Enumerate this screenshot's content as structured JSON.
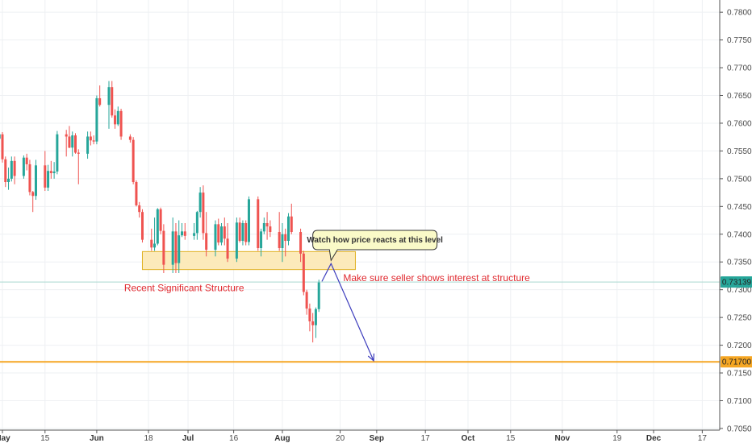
{
  "chart_data": {
    "type": "candlestick",
    "x_ticks": [
      {
        "label": "May",
        "kind": "month",
        "day": 0
      },
      {
        "label": "15",
        "kind": "day",
        "day": 14
      },
      {
        "label": "Jun",
        "kind": "month",
        "day": 31
      },
      {
        "label": "18",
        "kind": "day",
        "day": 48
      },
      {
        "label": "Jul",
        "kind": "month",
        "day": 61
      },
      {
        "label": "16",
        "kind": "day",
        "day": 76
      },
      {
        "label": "Aug",
        "kind": "month",
        "day": 92
      },
      {
        "label": "20",
        "kind": "day",
        "day": 111
      },
      {
        "label": "Sep",
        "kind": "month",
        "day": 123
      },
      {
        "label": "17",
        "kind": "day",
        "day": 139
      },
      {
        "label": "Oct",
        "kind": "month",
        "day": 153
      },
      {
        "label": "15",
        "kind": "day",
        "day": 167
      },
      {
        "label": "Nov",
        "kind": "month",
        "day": 184
      },
      {
        "label": "19",
        "kind": "day",
        "day": 202
      },
      {
        "label": "Dec",
        "kind": "month",
        "day": 214
      },
      {
        "label": "17",
        "kind": "day",
        "day": 230
      }
    ],
    "y_ticks": [
      "0.78000",
      "0.77500",
      "0.77000",
      "0.76500",
      "0.76000",
      "0.75500",
      "0.75000",
      "0.74500",
      "0.74000",
      "0.73500",
      "0.73000",
      "0.72500",
      "0.72000",
      "0.71500",
      "0.71000",
      "0.70500"
    ],
    "ylim": [
      0.7047,
      0.7822
    ],
    "xlim_days": [
      0,
      236
    ],
    "candles": [
      {
        "day": -1,
        "o": 0.7572,
        "h": 0.7585,
        "l": 0.7538,
        "c": 0.758
      },
      {
        "day": 0,
        "o": 0.758,
        "h": 0.7584,
        "l": 0.7529,
        "c": 0.7535
      },
      {
        "day": 1,
        "o": 0.7535,
        "h": 0.754,
        "l": 0.7485,
        "c": 0.7494
      },
      {
        "day": 2,
        "o": 0.7494,
        "h": 0.752,
        "l": 0.748,
        "c": 0.75
      },
      {
        "day": 3,
        "o": 0.75,
        "h": 0.754,
        "l": 0.7495,
        "c": 0.7532
      },
      {
        "day": 4,
        "o": 0.7532,
        "h": 0.754,
        "l": 0.749,
        "c": 0.7505
      },
      {
        "day": 7,
        "o": 0.7505,
        "h": 0.7542,
        "l": 0.75,
        "c": 0.7538
      },
      {
        "day": 8,
        "o": 0.7538,
        "h": 0.7545,
        "l": 0.7515,
        "c": 0.7526
      },
      {
        "day": 9,
        "o": 0.7526,
        "h": 0.7534,
        "l": 0.747,
        "c": 0.7476
      },
      {
        "day": 10,
        "o": 0.7476,
        "h": 0.7478,
        "l": 0.744,
        "c": 0.7469
      },
      {
        "day": 11,
        "o": 0.7469,
        "h": 0.7534,
        "l": 0.7462,
        "c": 0.7524
      },
      {
        "day": 14,
        "o": 0.7524,
        "h": 0.755,
        "l": 0.7478,
        "c": 0.7484
      },
      {
        "day": 15,
        "o": 0.7484,
        "h": 0.7525,
        "l": 0.7478,
        "c": 0.7514
      },
      {
        "day": 16,
        "o": 0.7514,
        "h": 0.7532,
        "l": 0.75,
        "c": 0.751
      },
      {
        "day": 17,
        "o": 0.751,
        "h": 0.753,
        "l": 0.75,
        "c": 0.7513
      },
      {
        "day": 18,
        "o": 0.7513,
        "h": 0.7586,
        "l": 0.7508,
        "c": 0.758
      },
      {
        "day": 21,
        "o": 0.758,
        "h": 0.7588,
        "l": 0.754,
        "c": 0.7576
      },
      {
        "day": 22,
        "o": 0.7576,
        "h": 0.7595,
        "l": 0.7555,
        "c": 0.7556
      },
      {
        "day": 23,
        "o": 0.7556,
        "h": 0.7585,
        "l": 0.754,
        "c": 0.7578
      },
      {
        "day": 24,
        "o": 0.7578,
        "h": 0.7582,
        "l": 0.7545,
        "c": 0.7547
      },
      {
        "day": 25,
        "o": 0.7547,
        "h": 0.7553,
        "l": 0.749,
        "c": 0.7545
      },
      {
        "day": 28,
        "o": 0.7545,
        "h": 0.7585,
        "l": 0.7536,
        "c": 0.7576
      },
      {
        "day": 29,
        "o": 0.7576,
        "h": 0.7585,
        "l": 0.756,
        "c": 0.7569
      },
      {
        "day": 30,
        "o": 0.7569,
        "h": 0.7578,
        "l": 0.7562,
        "c": 0.7567
      },
      {
        "day": 31,
        "o": 0.7567,
        "h": 0.765,
        "l": 0.7562,
        "c": 0.7645
      },
      {
        "day": 32,
        "o": 0.7645,
        "h": 0.7668,
        "l": 0.763,
        "c": 0.7633
      },
      {
        "day": 35,
        "o": 0.7633,
        "h": 0.7676,
        "l": 0.759,
        "c": 0.7665
      },
      {
        "day": 36,
        "o": 0.7665,
        "h": 0.7676,
        "l": 0.761,
        "c": 0.7614
      },
      {
        "day": 37,
        "o": 0.7614,
        "h": 0.7625,
        "l": 0.759,
        "c": 0.7598
      },
      {
        "day": 38,
        "o": 0.7598,
        "h": 0.763,
        "l": 0.7595,
        "c": 0.7622
      },
      {
        "day": 39,
        "o": 0.7622,
        "h": 0.7626,
        "l": 0.757,
        "c": 0.7576
      },
      {
        "day": 42,
        "o": 0.7576,
        "h": 0.758,
        "l": 0.7565,
        "c": 0.757
      },
      {
        "day": 43,
        "o": 0.757,
        "h": 0.7575,
        "l": 0.749,
        "c": 0.7494
      },
      {
        "day": 44,
        "o": 0.7494,
        "h": 0.7497,
        "l": 0.745,
        "c": 0.7452
      },
      {
        "day": 45,
        "o": 0.7452,
        "h": 0.7458,
        "l": 0.743,
        "c": 0.744
      },
      {
        "day": 46,
        "o": 0.744,
        "h": 0.7445,
        "l": 0.7385,
        "c": 0.739
      },
      {
        "day": 49,
        "o": 0.739,
        "h": 0.741,
        "l": 0.737,
        "c": 0.7376
      },
      {
        "day": 50,
        "o": 0.7376,
        "h": 0.743,
        "l": 0.737,
        "c": 0.7383
      },
      {
        "day": 51,
        "o": 0.7383,
        "h": 0.7447,
        "l": 0.738,
        "c": 0.7445
      },
      {
        "day": 52,
        "o": 0.7445,
        "h": 0.7448,
        "l": 0.74,
        "c": 0.7406
      },
      {
        "day": 53,
        "o": 0.7406,
        "h": 0.7418,
        "l": 0.733,
        "c": 0.7345
      },
      {
        "day": 56,
        "o": 0.7345,
        "h": 0.743,
        "l": 0.733,
        "c": 0.7405
      },
      {
        "day": 57,
        "o": 0.7405,
        "h": 0.742,
        "l": 0.733,
        "c": 0.7348
      },
      {
        "day": 58,
        "o": 0.7348,
        "h": 0.7425,
        "l": 0.733,
        "c": 0.7398
      },
      {
        "day": 59,
        "o": 0.7398,
        "h": 0.742,
        "l": 0.7395,
        "c": 0.7405
      },
      {
        "day": 60,
        "o": 0.7405,
        "h": 0.742,
        "l": 0.739,
        "c": 0.7397
      },
      {
        "day": 63,
        "o": 0.7397,
        "h": 0.742,
        "l": 0.739,
        "c": 0.7402
      },
      {
        "day": 64,
        "o": 0.7402,
        "h": 0.7442,
        "l": 0.739,
        "c": 0.744
      },
      {
        "day": 65,
        "o": 0.744,
        "h": 0.7485,
        "l": 0.743,
        "c": 0.7475
      },
      {
        "day": 66,
        "o": 0.7475,
        "h": 0.7488,
        "l": 0.739,
        "c": 0.7402
      },
      {
        "day": 67,
        "o": 0.7402,
        "h": 0.744,
        "l": 0.736,
        "c": 0.7372
      },
      {
        "day": 70,
        "o": 0.7372,
        "h": 0.7425,
        "l": 0.736,
        "c": 0.7418
      },
      {
        "day": 71,
        "o": 0.7418,
        "h": 0.7428,
        "l": 0.738,
        "c": 0.7385
      },
      {
        "day": 72,
        "o": 0.7385,
        "h": 0.742,
        "l": 0.738,
        "c": 0.7414
      },
      {
        "day": 73,
        "o": 0.7414,
        "h": 0.743,
        "l": 0.738,
        "c": 0.7392
      },
      {
        "day": 74,
        "o": 0.7392,
        "h": 0.742,
        "l": 0.735,
        "c": 0.7356
      },
      {
        "day": 77,
        "o": 0.7356,
        "h": 0.743,
        "l": 0.735,
        "c": 0.7421
      },
      {
        "day": 78,
        "o": 0.7421,
        "h": 0.743,
        "l": 0.7385,
        "c": 0.7388
      },
      {
        "day": 79,
        "o": 0.7388,
        "h": 0.7425,
        "l": 0.738,
        "c": 0.742
      },
      {
        "day": 80,
        "o": 0.742,
        "h": 0.7425,
        "l": 0.738,
        "c": 0.7386
      },
      {
        "day": 81,
        "o": 0.7386,
        "h": 0.7468,
        "l": 0.738,
        "c": 0.7463
      },
      {
        "day": 84,
        "o": 0.7463,
        "h": 0.7468,
        "l": 0.737,
        "c": 0.7375
      },
      {
        "day": 85,
        "o": 0.7375,
        "h": 0.741,
        "l": 0.736,
        "c": 0.7405
      },
      {
        "day": 86,
        "o": 0.7405,
        "h": 0.743,
        "l": 0.74,
        "c": 0.742
      },
      {
        "day": 87,
        "o": 0.742,
        "h": 0.744,
        "l": 0.739,
        "c": 0.7414
      },
      {
        "day": 88,
        "o": 0.7414,
        "h": 0.7425,
        "l": 0.7395,
        "c": 0.7404
      },
      {
        "day": 91,
        "o": 0.7404,
        "h": 0.744,
        "l": 0.737,
        "c": 0.7375
      },
      {
        "day": 92,
        "o": 0.7375,
        "h": 0.742,
        "l": 0.735,
        "c": 0.74
      },
      {
        "day": 93,
        "o": 0.74,
        "h": 0.741,
        "l": 0.736,
        "c": 0.7388
      },
      {
        "day": 94,
        "o": 0.7388,
        "h": 0.7438,
        "l": 0.738,
        "c": 0.7432
      },
      {
        "day": 95,
        "o": 0.7432,
        "h": 0.7455,
        "l": 0.74,
        "c": 0.7404
      },
      {
        "day": 98,
        "o": 0.7404,
        "h": 0.741,
        "l": 0.735,
        "c": 0.7365
      },
      {
        "day": 99,
        "o": 0.7365,
        "h": 0.737,
        "l": 0.729,
        "c": 0.7296
      },
      {
        "day": 100,
        "o": 0.7296,
        "h": 0.73,
        "l": 0.7255,
        "c": 0.7266
      },
      {
        "day": 101,
        "o": 0.7266,
        "h": 0.7275,
        "l": 0.7225,
        "c": 0.7243
      },
      {
        "day": 102,
        "o": 0.7243,
        "h": 0.7258,
        "l": 0.7205,
        "c": 0.7236
      },
      {
        "day": 103,
        "o": 0.7236,
        "h": 0.7268,
        "l": 0.7213,
        "c": 0.7265
      },
      {
        "day": 104,
        "o": 0.7265,
        "h": 0.7318,
        "l": 0.726,
        "c": 0.7313
      }
    ],
    "structure_zone": {
      "day_start": 46,
      "day_end": 116,
      "price_low": 0.7345,
      "price_high": 0.736,
      "label": "Recent Significant Structure"
    },
    "horizontal_lines": [
      {
        "price": 0.717,
        "label": "0.71700",
        "color": "#f5a623"
      },
      {
        "price": 0.73139,
        "label": "0.73139",
        "color": "#a8d8cf"
      }
    ],
    "projection": {
      "points": [
        {
          "day": 105,
          "price": 0.7315
        },
        {
          "day": 108,
          "price": 0.7347
        },
        {
          "day": 122,
          "price": 0.7172
        }
      ],
      "color": "#3d3dbd"
    },
    "annotations": {
      "structure_label": "Recent Significant Structure",
      "callout": "Watch how price reacts at this level",
      "note": "Make sure seller shows interest at structure"
    },
    "colors": {
      "bull": "#26a69a",
      "bear": "#ef5350",
      "zone_fill": "#fce8b2",
      "zone_stroke": "#e0b020",
      "last_price_tag": "#26a69a",
      "support_tag": "#f5a623",
      "callout_fill": "#fafac8",
      "callout_stroke": "#333333",
      "annotation_red": "#e0282e",
      "grid": "#eef0f3"
    }
  }
}
